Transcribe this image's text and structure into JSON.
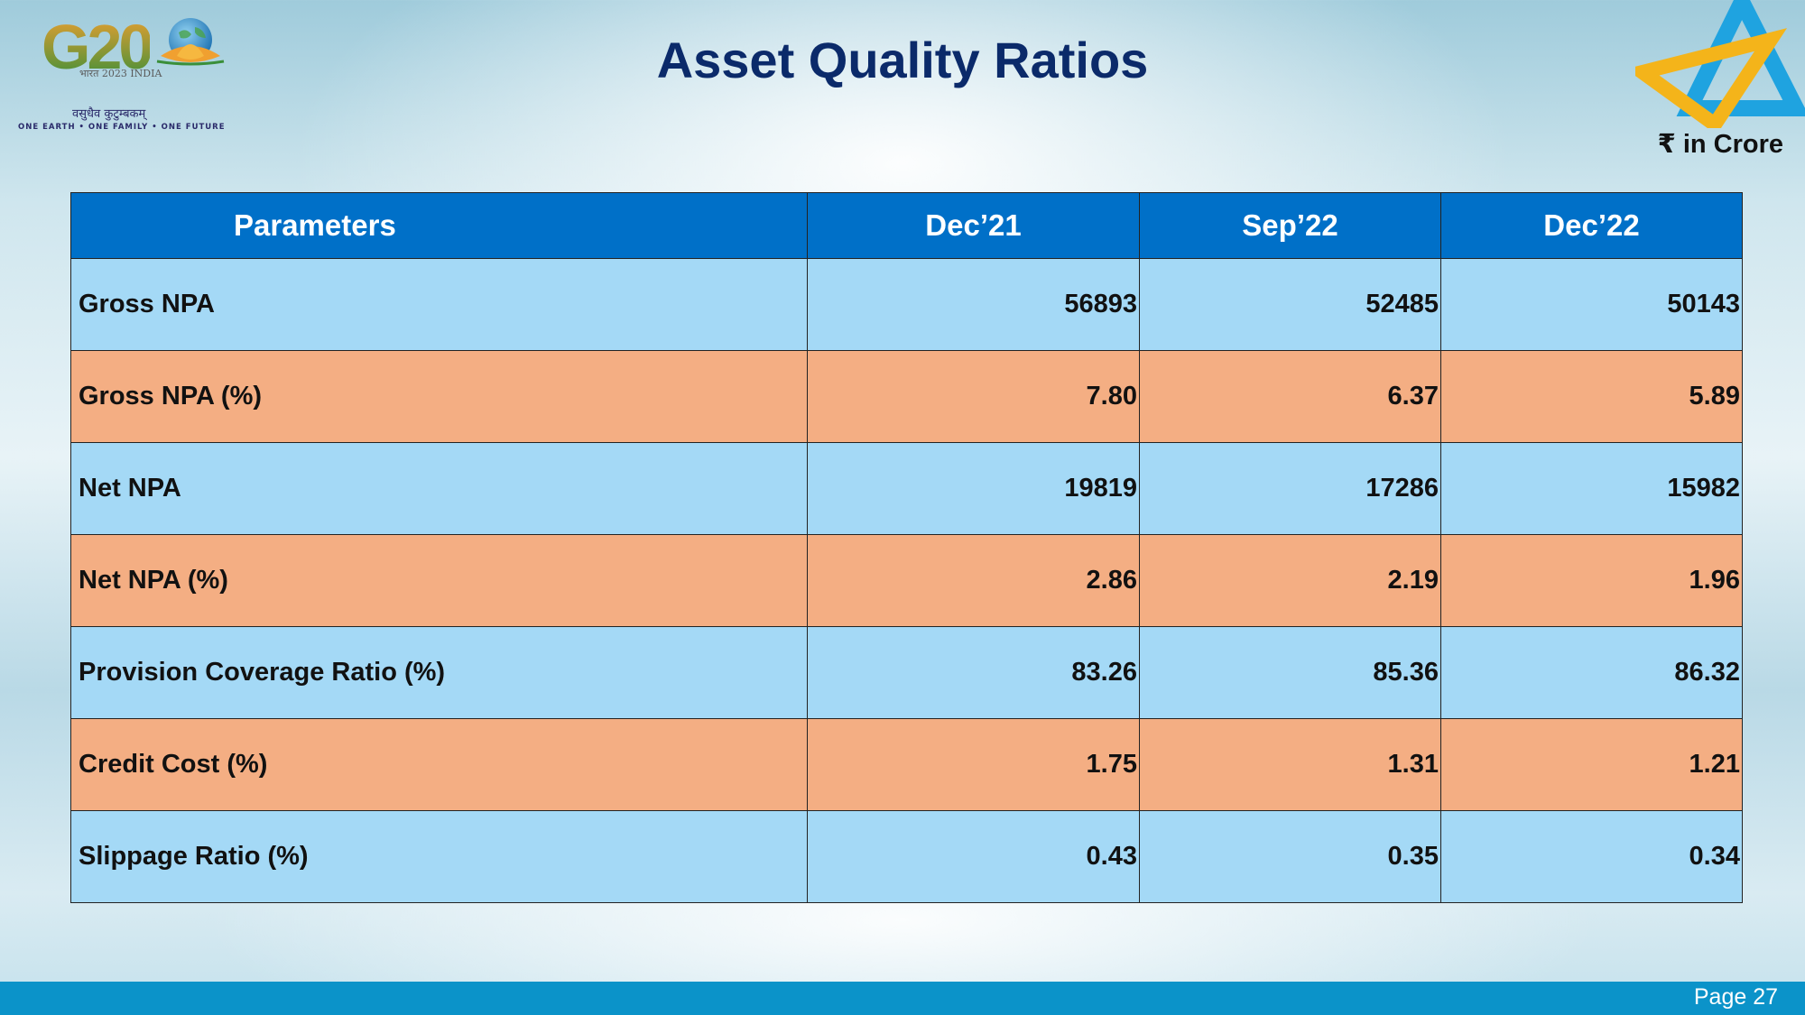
{
  "logo": {
    "g20_mark": "G20",
    "bharat_line": "भारत 2023 INDIA",
    "sanskrit_line": "वसुधैव कुटुम्बकम्",
    "motto": "ONE EARTH • ONE FAMILY • ONE FUTURE"
  },
  "title": "Asset Quality Ratios",
  "unit_note": "₹ in Crore",
  "table": {
    "headers": [
      "Parameters",
      "Dec’21",
      "Sep’22",
      "Dec’22"
    ],
    "rows": [
      {
        "label": "Gross NPA",
        "values": [
          "56893",
          "52485",
          "50143"
        ]
      },
      {
        "label": "Gross NPA (%)",
        "values": [
          "7.80",
          "6.37",
          "5.89"
        ]
      },
      {
        "label": "Net NPA",
        "values": [
          "19819",
          "17286",
          "15982"
        ]
      },
      {
        "label": "Net NPA (%)",
        "values": [
          "2.86",
          "2.19",
          "1.96"
        ]
      },
      {
        "label": "Provision Coverage Ratio (%)",
        "values": [
          "83.26",
          "85.36",
          "86.32"
        ]
      },
      {
        "label": "Credit Cost (%)",
        "values": [
          "1.75",
          "1.31",
          "1.21"
        ]
      },
      {
        "label": "Slippage Ratio (%)",
        "values": [
          "0.43",
          "0.35",
          "0.34"
        ]
      }
    ]
  },
  "footer": {
    "page": "Page 27"
  },
  "colors": {
    "header_bg": "#0070c8",
    "row_blue": "#a4d9f6",
    "row_orange": "#f4ae83",
    "title": "#0b2a6a",
    "footer_bar": "#0b93c9",
    "logo_blue": "#1fa3e0",
    "logo_yellow": "#f4b41a"
  },
  "icons": [
    "g20-lotus-globe-icon",
    "bank-of-india-star-logo-icon"
  ]
}
